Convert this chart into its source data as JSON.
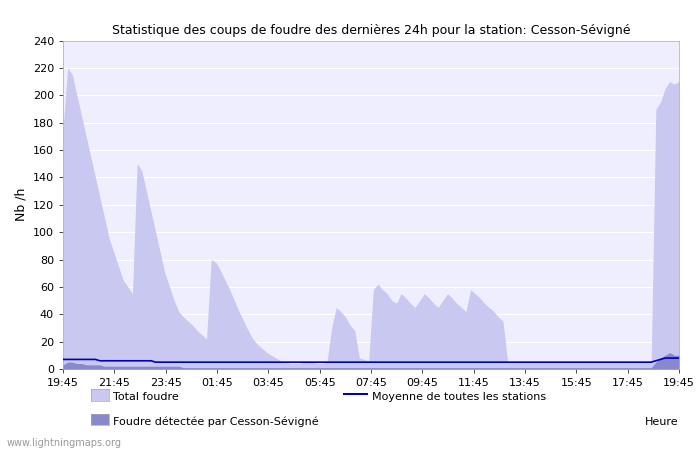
{
  "title": "Statistique des coups de foudre des dernières 24h pour la station: Cesson-Sévigné",
  "ylabel": "Nb /h",
  "xlabel": "Heure",
  "xlabels": [
    "19:45",
    "21:45",
    "23:45",
    "01:45",
    "03:45",
    "05:45",
    "07:45",
    "09:45",
    "11:45",
    "13:45",
    "15:45",
    "17:45",
    "19:45"
  ],
  "ylim": [
    0,
    240
  ],
  "yticks": [
    0,
    20,
    40,
    60,
    80,
    100,
    120,
    140,
    160,
    180,
    200,
    220,
    240
  ],
  "legend1": "Total foudre",
  "legend2": "Foudre détectée par Cesson-Sévigné",
  "legend3": "Moyenne de toutes les stations",
  "watermark": "www.lightningmaps.org",
  "bg_color": "#ffffff",
  "plot_bg_color": "#eeeeff",
  "fill_color_total": "#c8c8f0",
  "fill_color_detected": "#8888cc",
  "line_color_mean": "#0000bb",
  "total_foudre": [
    175,
    220,
    215,
    200,
    185,
    170,
    155,
    140,
    125,
    110,
    95,
    85,
    75,
    65,
    60,
    55,
    150,
    145,
    130,
    115,
    100,
    85,
    70,
    60,
    50,
    42,
    38,
    35,
    32,
    28,
    25,
    22,
    80,
    78,
    72,
    65,
    58,
    50,
    42,
    35,
    28,
    22,
    18,
    15,
    12,
    10,
    8,
    6,
    5,
    4,
    4,
    4,
    5,
    6,
    5,
    4,
    4,
    5,
    30,
    45,
    42,
    38,
    32,
    28,
    8,
    7,
    6,
    58,
    62,
    58,
    55,
    50,
    48,
    55,
    52,
    48,
    45,
    50,
    55,
    52,
    48,
    45,
    50,
    55,
    52,
    48,
    45,
    42,
    58,
    55,
    52,
    48,
    45,
    42,
    38,
    35,
    5,
    5,
    5,
    5,
    5,
    5,
    5,
    5,
    5,
    5,
    5,
    5,
    5,
    5,
    5,
    5,
    5,
    5,
    5,
    5,
    5,
    5,
    5,
    5,
    5,
    5,
    5,
    5,
    5,
    5,
    5,
    5,
    190,
    195,
    205,
    210,
    208,
    210
  ],
  "detected_foudre": [
    3,
    5,
    5,
    4,
    4,
    3,
    3,
    3,
    3,
    2,
    2,
    2,
    2,
    2,
    2,
    2,
    2,
    2,
    2,
    2,
    2,
    2,
    2,
    2,
    2,
    2,
    1,
    1,
    1,
    1,
    1,
    1,
    1,
    1,
    1,
    1,
    1,
    1,
    1,
    1,
    1,
    1,
    1,
    1,
    1,
    1,
    1,
    1,
    1,
    1,
    1,
    1,
    1,
    1,
    1,
    1,
    1,
    1,
    1,
    1,
    1,
    1,
    1,
    1,
    1,
    1,
    1,
    1,
    1,
    1,
    1,
    1,
    1,
    1,
    1,
    1,
    1,
    1,
    1,
    1,
    1,
    1,
    1,
    1,
    1,
    1,
    1,
    1,
    1,
    1,
    1,
    1,
    1,
    1,
    1,
    1,
    1,
    1,
    1,
    1,
    1,
    1,
    1,
    1,
    1,
    1,
    1,
    1,
    1,
    1,
    1,
    1,
    1,
    1,
    1,
    1,
    1,
    1,
    1,
    1,
    1,
    1,
    1,
    1,
    1,
    1,
    1,
    1,
    5,
    8,
    10,
    12,
    10,
    10
  ],
  "mean_line": [
    7,
    7,
    7,
    7,
    7,
    7,
    7,
    7,
    6,
    6,
    6,
    6,
    6,
    6,
    6,
    6,
    6,
    6,
    6,
    6,
    5,
    5,
    5,
    5,
    5,
    5,
    5,
    5,
    5,
    5,
    5,
    5,
    5,
    5,
    5,
    5,
    5,
    5,
    5,
    5,
    5,
    5,
    5,
    5,
    5,
    5,
    5,
    5,
    5,
    5,
    5,
    5,
    5,
    5,
    5,
    5,
    5,
    5,
    5,
    5,
    5,
    5,
    5,
    5,
    5,
    5,
    5,
    5,
    5,
    5,
    5,
    5,
    5,
    5,
    5,
    5,
    5,
    5,
    5,
    5,
    5,
    5,
    5,
    5,
    5,
    5,
    5,
    5,
    5,
    5,
    5,
    5,
    5,
    5,
    5,
    5,
    5,
    5,
    5,
    5,
    5,
    5,
    5,
    5,
    5,
    5,
    5,
    5,
    5,
    5,
    5,
    5,
    5,
    5,
    5,
    5,
    5,
    5,
    5,
    5,
    5,
    5,
    5,
    5,
    5,
    5,
    5,
    5,
    6,
    7,
    8,
    8,
    8,
    8
  ]
}
